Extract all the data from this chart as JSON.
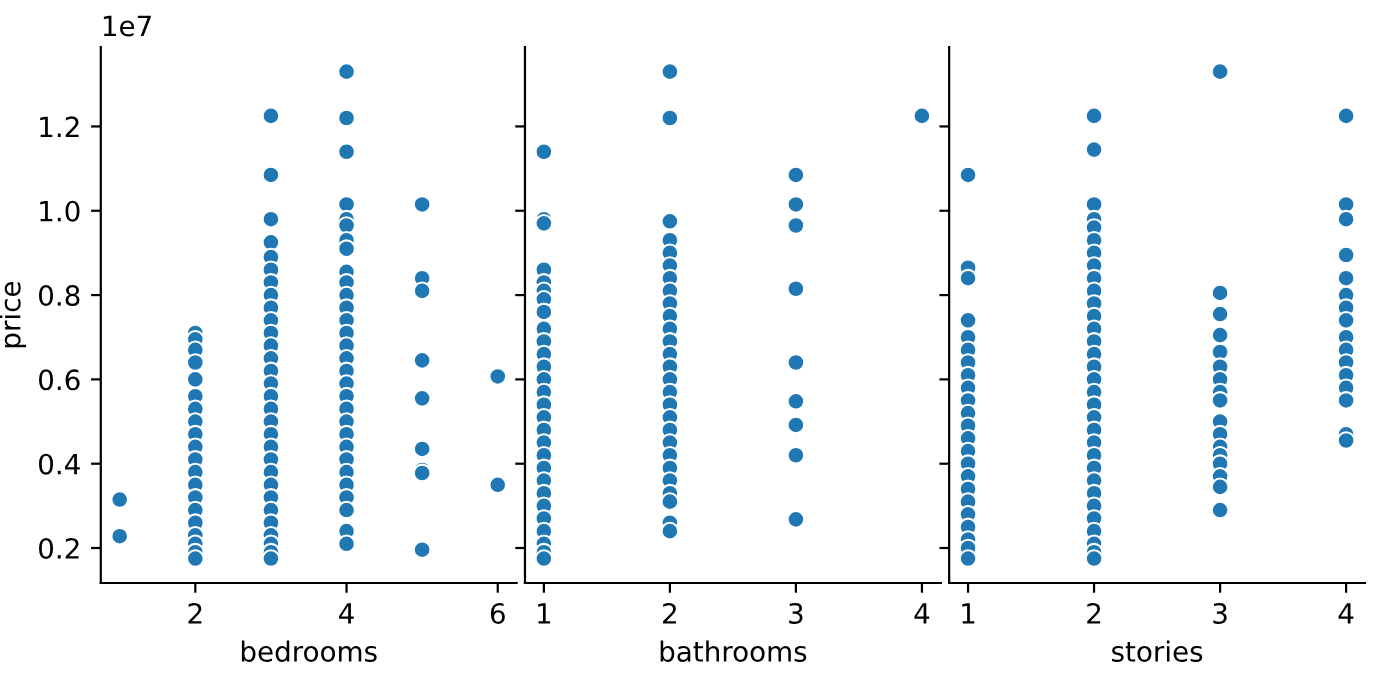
{
  "chart_data": [
    {
      "type": "scatter",
      "xlabel": "bedrooms",
      "ylabel": "price",
      "annotations": [
        "1e7"
      ],
      "marker": "circle",
      "grid": false,
      "legend": false,
      "xlim": [
        0.75,
        6.25
      ],
      "xticks": [
        2,
        4,
        6
      ],
      "ylim": [
        0.117,
        1.388
      ],
      "yticks": [
        0.2,
        0.4,
        0.6,
        0.8,
        {
          "value": 1.0,
          "label": "1.0"
        },
        1.2
      ],
      "series": [
        {
          "color": "#1f77b4",
          "x": [
            1,
            1,
            2,
            2,
            2,
            2,
            2,
            2,
            2,
            2,
            2,
            2,
            2,
            2,
            2,
            2,
            2,
            2,
            2,
            2,
            2,
            2,
            3,
            3,
            3,
            3,
            3,
            3,
            3,
            3,
            3,
            3,
            3,
            3,
            3,
            3,
            3,
            3,
            3,
            3,
            3,
            3,
            3,
            3,
            3,
            3,
            3,
            3,
            3,
            3,
            3,
            3,
            4,
            4,
            4,
            4,
            4,
            4,
            4,
            4,
            4,
            4,
            4,
            4,
            4,
            4,
            4,
            4,
            4,
            4,
            4,
            4,
            4,
            4,
            4,
            4,
            4,
            4,
            4,
            4,
            4,
            4,
            5,
            5,
            5,
            5,
            5,
            5,
            5,
            5,
            5,
            6,
            6
          ],
          "values": [
            0.315,
            0.228,
            0.71,
            0.695,
            0.67,
            0.64,
            0.6,
            0.56,
            0.53,
            0.5,
            0.47,
            0.44,
            0.41,
            0.38,
            0.35,
            0.32,
            0.29,
            0.26,
            0.23,
            0.21,
            0.19,
            0.175,
            1.225,
            1.085,
            0.98,
            0.925,
            0.89,
            0.86,
            0.83,
            0.8,
            0.77,
            0.74,
            0.71,
            0.68,
            0.65,
            0.62,
            0.59,
            0.56,
            0.53,
            0.5,
            0.47,
            0.44,
            0.41,
            0.38,
            0.35,
            0.32,
            0.29,
            0.26,
            0.23,
            0.21,
            0.19,
            0.175,
            1.33,
            1.22,
            1.14,
            1.015,
            0.98,
            0.965,
            0.93,
            0.91,
            0.855,
            0.83,
            0.8,
            0.77,
            0.74,
            0.71,
            0.68,
            0.65,
            0.62,
            0.59,
            0.56,
            0.53,
            0.5,
            0.47,
            0.44,
            0.41,
            0.38,
            0.35,
            0.32,
            0.29,
            0.24,
            0.21,
            1.015,
            0.84,
            0.81,
            0.645,
            0.555,
            0.435,
            0.385,
            0.378,
            0.196,
            0.607,
            0.35
          ]
        }
      ]
    },
    {
      "type": "scatter",
      "xlabel": "bathrooms",
      "marker": "circle",
      "grid": false,
      "legend": false,
      "tick_labels": "x",
      "xlim": [
        0.85,
        4.15
      ],
      "xticks": [
        1,
        2,
        3,
        4
      ],
      "ylim": [
        0.117,
        1.388
      ],
      "yticks": [
        0.2,
        0.4,
        0.6,
        0.8,
        1.0,
        1.2
      ],
      "series": [
        {
          "color": "#1f77b4",
          "x": [
            1,
            1,
            1,
            1,
            1,
            1,
            1,
            1,
            1,
            1,
            1,
            1,
            1,
            1,
            1,
            1,
            1,
            1,
            1,
            1,
            1,
            1,
            1,
            1,
            1,
            1,
            1,
            1,
            2,
            2,
            2,
            2,
            2,
            2,
            2,
            2,
            2,
            2,
            2,
            2,
            2,
            2,
            2,
            2,
            2,
            2,
            2,
            2,
            2,
            2,
            2,
            2,
            2,
            2,
            2,
            3,
            3,
            3,
            3,
            3,
            3,
            3,
            3,
            3,
            4
          ],
          "values": [
            1.14,
            0.98,
            0.97,
            0.86,
            0.83,
            0.81,
            0.79,
            0.76,
            0.72,
            0.69,
            0.66,
            0.63,
            0.6,
            0.57,
            0.54,
            0.51,
            0.48,
            0.45,
            0.42,
            0.39,
            0.36,
            0.33,
            0.3,
            0.27,
            0.24,
            0.21,
            0.19,
            0.175,
            1.33,
            1.22,
            0.975,
            0.93,
            0.9,
            0.87,
            0.84,
            0.81,
            0.78,
            0.75,
            0.72,
            0.69,
            0.66,
            0.63,
            0.6,
            0.57,
            0.54,
            0.51,
            0.48,
            0.45,
            0.42,
            0.39,
            0.36,
            0.33,
            0.31,
            0.26,
            0.24,
            1.085,
            1.015,
            0.965,
            0.815,
            0.64,
            0.548,
            0.492,
            0.42,
            0.268,
            1.225
          ]
        }
      ]
    },
    {
      "type": "scatter",
      "xlabel": "stories",
      "marker": "circle",
      "grid": false,
      "legend": false,
      "tick_labels": "x",
      "xlim": [
        0.85,
        4.15
      ],
      "xticks": [
        1,
        2,
        3,
        4
      ],
      "ylim": [
        0.117,
        1.388
      ],
      "yticks": [
        0.2,
        0.4,
        0.6,
        0.8,
        1.0,
        1.2
      ],
      "series": [
        {
          "color": "#1f77b4",
          "x": [
            1,
            1,
            1,
            1,
            1,
            1,
            1,
            1,
            1,
            1,
            1,
            1,
            1,
            1,
            1,
            1,
            1,
            1,
            1,
            1,
            1,
            1,
            1,
            2,
            2,
            2,
            2,
            2,
            2,
            2,
            2,
            2,
            2,
            2,
            2,
            2,
            2,
            2,
            2,
            2,
            2,
            2,
            2,
            2,
            2,
            2,
            2,
            2,
            2,
            2,
            2,
            2,
            2,
            2,
            2,
            3,
            3,
            3,
            3,
            3,
            3,
            3,
            3,
            3,
            3,
            3,
            3,
            3,
            3,
            3,
            3,
            3,
            4,
            4,
            4,
            4,
            4,
            4,
            4,
            4,
            4,
            4,
            4,
            4,
            4,
            4,
            4,
            4
          ],
          "values": [
            1.085,
            0.865,
            0.84,
            0.74,
            0.7,
            0.67,
            0.64,
            0.61,
            0.58,
            0.55,
            0.52,
            0.49,
            0.46,
            0.43,
            0.4,
            0.37,
            0.34,
            0.31,
            0.28,
            0.25,
            0.22,
            0.2,
            0.175,
            1.225,
            1.145,
            1.015,
            0.98,
            0.96,
            0.93,
            0.9,
            0.87,
            0.84,
            0.81,
            0.78,
            0.75,
            0.72,
            0.69,
            0.66,
            0.63,
            0.6,
            0.57,
            0.54,
            0.51,
            0.48,
            0.45,
            0.42,
            0.39,
            0.36,
            0.33,
            0.3,
            0.27,
            0.24,
            0.21,
            0.19,
            0.175,
            1.33,
            0.805,
            0.755,
            0.705,
            0.665,
            0.63,
            0.6,
            0.57,
            0.55,
            0.5,
            0.47,
            0.44,
            0.42,
            0.4,
            0.37,
            0.345,
            0.29,
            1.225,
            1.015,
            0.98,
            0.895,
            0.84,
            0.8,
            0.77,
            0.74,
            0.7,
            0.67,
            0.64,
            0.61,
            0.58,
            0.55,
            0.47,
            0.455
          ]
        }
      ]
    }
  ]
}
